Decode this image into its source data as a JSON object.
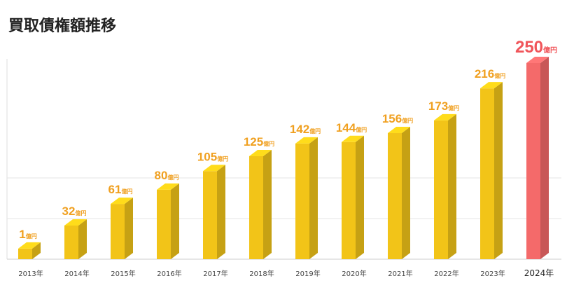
{
  "chart_data": {
    "type": "bar3d",
    "title": "買取債権額推移",
    "unit": "億円",
    "categories": [
      "2013年",
      "2014年",
      "2015年",
      "2016年",
      "2017年",
      "2018年",
      "2019年",
      "2020年",
      "2021年",
      "2022年",
      "2023年",
      "2024年"
    ],
    "values": [
      1,
      32,
      61,
      80,
      105,
      125,
      142,
      144,
      156,
      173,
      216,
      250
    ],
    "colors": [
      "#f2c418",
      "#f2c418",
      "#f2c418",
      "#f2c418",
      "#f2c418",
      "#f2c418",
      "#f2c418",
      "#f2c418",
      "#f2c418",
      "#f2c418",
      "#f2c418",
      "#f46a6a"
    ],
    "label_colors": [
      "#f0a020",
      "#f0a020",
      "#f0a020",
      "#f0a020",
      "#f0a020",
      "#f0a020",
      "#f0a020",
      "#f0a020",
      "#f0a020",
      "#f0a020",
      "#f0a020",
      "#f0555a"
    ],
    "ylim": [
      0,
      250
    ]
  }
}
